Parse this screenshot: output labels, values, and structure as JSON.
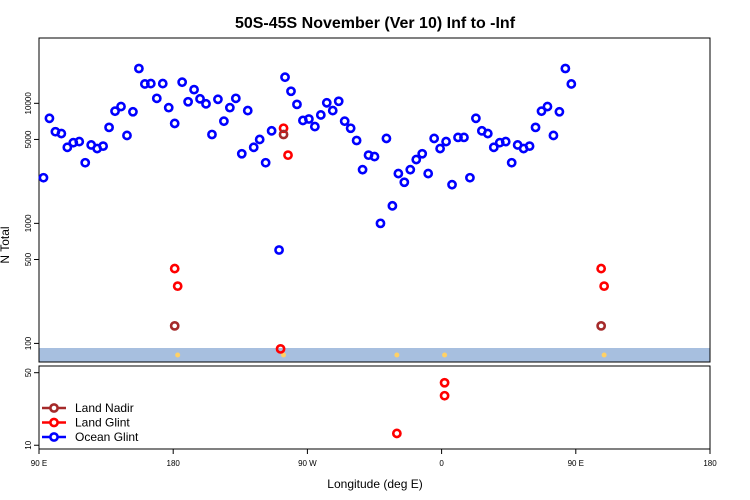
{
  "chart_data": {
    "type": "scatter",
    "title": "50S-45S November (Ver 10)   Inf to -Inf",
    "xlabel": "Longitude (deg E)",
    "ylabel": "N Total",
    "x_ticks": [
      {
        "value": 90,
        "label": "90 E"
      },
      {
        "value": 180,
        "label": "180"
      },
      {
        "value": 270,
        "label": "90 W"
      },
      {
        "value": 360,
        "label": "0"
      },
      {
        "value": 450,
        "label": "90 E"
      },
      {
        "value": 540,
        "label": "180"
      }
    ],
    "xlim": [
      90,
      540
    ],
    "upper_panel": {
      "yscale": "log",
      "ylim": [
        70,
        35000
      ],
      "y_ticks": [
        {
          "value": 100,
          "label": "100"
        },
        {
          "value": 500,
          "label": "500"
        },
        {
          "value": 1000,
          "label": "1000"
        },
        {
          "value": 5000,
          "label": "5000"
        },
        {
          "value": 10000,
          "label": "10000"
        }
      ],
      "band_color": "#a7bfdf"
    },
    "lower_panel": {
      "yscale": "log",
      "ylim": [
        9.2,
        58
      ],
      "y_ticks": [
        {
          "value": 10,
          "label": "10"
        },
        {
          "value": 50,
          "label": "50"
        }
      ]
    },
    "legend": {
      "position": "bottom-left",
      "entries": [
        {
          "label": "Land Nadir",
          "color": "#a52a2a"
        },
        {
          "label": "Land Glint",
          "color": "#ff0000"
        },
        {
          "label": "Ocean Glint",
          "color": "#0000ff"
        }
      ]
    },
    "series": [
      {
        "name": "Ocean Glint",
        "color": "#0000ff",
        "points": [
          [
            93,
            2400
          ],
          [
            97,
            7500
          ],
          [
            101,
            5800
          ],
          [
            105,
            5600
          ],
          [
            109,
            4300
          ],
          [
            113,
            4700
          ],
          [
            117,
            4800
          ],
          [
            121,
            3200
          ],
          [
            125,
            4500
          ],
          [
            129,
            4200
          ],
          [
            133,
            4400
          ],
          [
            137,
            6300
          ],
          [
            141,
            8600
          ],
          [
            145,
            9400
          ],
          [
            149,
            5400
          ],
          [
            153,
            8500
          ],
          [
            157,
            19500
          ],
          [
            161,
            14500
          ],
          [
            165,
            14600
          ],
          [
            169,
            11000
          ],
          [
            173,
            14600
          ],
          [
            177,
            9200
          ],
          [
            181,
            6800
          ],
          [
            186,
            15000
          ],
          [
            190,
            10300
          ],
          [
            194,
            13000
          ],
          [
            198,
            10900
          ],
          [
            202,
            9900
          ],
          [
            206,
            5500
          ],
          [
            210,
            10800
          ],
          [
            214,
            7100
          ],
          [
            218,
            9200
          ],
          [
            222,
            11000
          ],
          [
            226,
            3800
          ],
          [
            230,
            8700
          ],
          [
            234,
            4300
          ],
          [
            238,
            5000
          ],
          [
            242,
            3200
          ],
          [
            246,
            5900
          ],
          [
            251,
            600
          ],
          [
            255,
            16500
          ],
          [
            259,
            12600
          ],
          [
            263,
            9800
          ],
          [
            267,
            7200
          ],
          [
            271,
            7400
          ],
          [
            275,
            6400
          ],
          [
            279,
            8000
          ],
          [
            283,
            10100
          ],
          [
            287,
            8700
          ],
          [
            291,
            10400
          ],
          [
            295,
            7100
          ],
          [
            299,
            6200
          ],
          [
            303,
            4900
          ],
          [
            307,
            2800
          ],
          [
            311,
            3700
          ],
          [
            315,
            3600
          ],
          [
            319,
            1000
          ],
          [
            323,
            5100
          ],
          [
            327,
            1400
          ],
          [
            331,
            2600
          ],
          [
            335,
            2200
          ],
          [
            339,
            2800
          ],
          [
            343,
            3400
          ],
          [
            347,
            3800
          ],
          [
            351,
            2600
          ],
          [
            355,
            5100
          ],
          [
            359,
            4200
          ],
          [
            363,
            4800
          ],
          [
            367,
            2100
          ],
          [
            371,
            5200
          ],
          [
            375,
            5200
          ],
          [
            379,
            2400
          ],
          [
            383,
            7500
          ],
          [
            387,
            5900
          ],
          [
            391,
            5600
          ],
          [
            395,
            4300
          ],
          [
            399,
            4700
          ],
          [
            403,
            4800
          ],
          [
            407,
            3200
          ],
          [
            411,
            4500
          ],
          [
            415,
            4200
          ],
          [
            419,
            4400
          ],
          [
            423,
            6300
          ],
          [
            427,
            8600
          ],
          [
            431,
            9400
          ],
          [
            435,
            5400
          ],
          [
            439,
            8500
          ],
          [
            443,
            19500
          ],
          [
            447,
            14500
          ]
        ]
      },
      {
        "name": "Land Glint",
        "color": "#ff0000",
        "points": [
          [
            181,
            420
          ],
          [
            183,
            300
          ],
          [
            252,
            90
          ],
          [
            254,
            6200
          ],
          [
            257,
            3700
          ],
          [
            467,
            420
          ],
          [
            469,
            300
          ]
        ],
        "lower_points": [
          [
            330,
            13
          ],
          [
            362,
            40
          ],
          [
            362,
            30
          ]
        ]
      },
      {
        "name": "Land Nadir",
        "color": "#a52a2a",
        "points": [
          [
            181,
            140
          ],
          [
            254,
            5500
          ],
          [
            467,
            140
          ]
        ]
      }
    ],
    "band_markers": [
      {
        "x": 183,
        "color": "#ffd166"
      },
      {
        "x": 254,
        "color": "#ffd166"
      },
      {
        "x": 330,
        "color": "#ffd166"
      },
      {
        "x": 362,
        "color": "#ffd166"
      },
      {
        "x": 469,
        "color": "#ffd166"
      }
    ]
  }
}
